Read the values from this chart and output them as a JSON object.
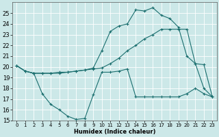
{
  "title": "",
  "xlabel": "Humidex (Indice chaleur)",
  "bg_color": "#cce8e8",
  "grid_color": "#ffffff",
  "line_color": "#1a6e6e",
  "xlim": [
    -0.5,
    23.5
  ],
  "ylim": [
    15,
    26
  ],
  "xticks": [
    0,
    1,
    2,
    3,
    4,
    5,
    6,
    7,
    8,
    9,
    10,
    11,
    12,
    13,
    14,
    15,
    16,
    17,
    18,
    19,
    20,
    21,
    22,
    23
  ],
  "yticks": [
    15,
    16,
    17,
    18,
    19,
    20,
    21,
    22,
    23,
    24,
    25
  ],
  "series": [
    {
      "x": [
        0,
        1,
        2,
        3,
        4,
        5,
        6,
        7,
        8,
        9,
        10,
        11,
        12,
        13,
        14,
        15,
        16,
        17,
        18,
        19,
        20,
        21,
        22,
        23
      ],
      "y": [
        20.1,
        19.6,
        19.4,
        17.5,
        16.5,
        16.0,
        15.4,
        15.1,
        15.2,
        17.4,
        19.5,
        19.5,
        19.6,
        19.8,
        17.2,
        17.2,
        17.2,
        17.2,
        17.2,
        17.2,
        17.5,
        18.0,
        17.5,
        17.2
      ]
    },
    {
      "x": [
        0,
        1,
        2,
        3,
        4,
        5,
        6,
        7,
        8,
        9,
        10,
        11,
        12,
        13,
        14,
        15,
        16,
        17,
        18,
        19,
        20,
        21,
        22,
        23
      ],
      "y": [
        20.1,
        19.6,
        19.4,
        19.4,
        19.4,
        19.5,
        19.5,
        19.6,
        19.7,
        19.8,
        19.9,
        20.3,
        20.8,
        21.5,
        22.0,
        22.6,
        23.0,
        23.5,
        23.5,
        23.5,
        23.5,
        20.3,
        20.2,
        17.2
      ]
    },
    {
      "x": [
        0,
        1,
        2,
        3,
        4,
        5,
        6,
        7,
        8,
        9,
        10,
        11,
        12,
        13,
        14,
        15,
        16,
        17,
        18,
        19,
        20,
        21,
        22,
        23
      ],
      "y": [
        20.1,
        19.6,
        19.4,
        19.4,
        19.4,
        19.4,
        19.5,
        19.6,
        19.7,
        19.9,
        21.5,
        23.3,
        23.8,
        24.0,
        25.3,
        25.2,
        25.5,
        24.8,
        24.5,
        23.7,
        21.0,
        20.3,
        18.0,
        17.2
      ]
    }
  ]
}
